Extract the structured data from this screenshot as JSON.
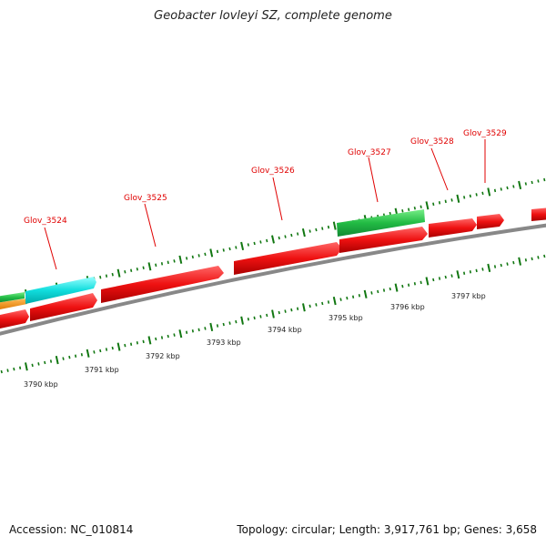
{
  "title": "Geobacter lovleyi SZ, complete genome",
  "footer": {
    "accession": "Accession: NC_010814",
    "summary": "Topology: circular; Length: 3,917,761 bp; Genes: 3,658"
  },
  "colors": {
    "cds": "#ee1111",
    "trna": "#22cc66",
    "rrna": "#22dddd",
    "other": "#ee8800",
    "backbone": "#888888",
    "ticks": "#117711",
    "label_line": "#e00000"
  },
  "scale": {
    "labels": [
      "3790 kbp",
      "3791 kbp",
      "3792 kbp",
      "3793 kbp",
      "3794 kbp",
      "3795 kbp",
      "3796 kbp",
      "3797 kbp"
    ],
    "positions_kbp": [
      3790,
      3791,
      3792,
      3793,
      3794,
      3795,
      3796,
      3797
    ]
  },
  "genes": {
    "labels": [
      "Glov_3524",
      "Glov_3525",
      "Glov_3526",
      "Glov_3527",
      "Glov_3528",
      "Glov_3529"
    ]
  }
}
